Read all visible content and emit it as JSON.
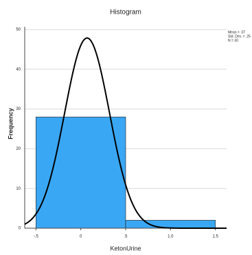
{
  "chart_data": {
    "type": "histogram",
    "title": "Histogram",
    "xlabel": "KetonUrine",
    "ylabel": "Frequency",
    "bins": [
      -0.5,
      0.5,
      1.5
    ],
    "counts": [
      28,
      2
    ],
    "color": "#3aa7f4",
    "xlim": [
      -0.625,
      1.625
    ],
    "ylim": [
      0,
      50
    ],
    "xticks": [
      {
        "value": -0.5,
        "label": "-.5"
      },
      0,
      {
        "value": 0.5,
        "label": ".5"
      },
      {
        "value": 1.0,
        "label": "1.0"
      },
      {
        "value": 1.5,
        "label": "1.5"
      }
    ],
    "yticks": [
      0,
      10,
      20,
      30,
      40,
      50
    ],
    "grid": true,
    "normal_curve": {
      "mean": 0.07,
      "sd": 0.25,
      "n": 30,
      "color": "#000000"
    },
    "annotations": [
      "Mean = .07",
      "Std. Dev. = .25",
      "N = 30"
    ]
  }
}
